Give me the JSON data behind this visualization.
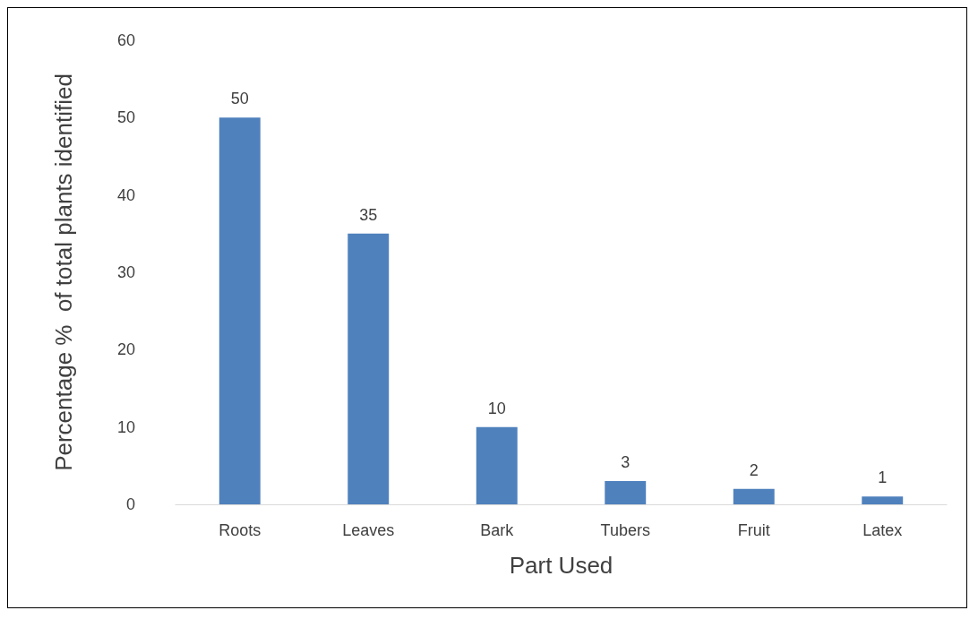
{
  "chart_data": {
    "type": "bar",
    "xlabel": "Part Used",
    "ylabel": "Percentage %  of total plants identified",
    "categories": [
      "Roots",
      "Leaves",
      "Bark",
      "Tubers",
      "Fruit",
      "Latex"
    ],
    "values": [
      50,
      35,
      10,
      3,
      2,
      1
    ],
    "color": "#4f81bd",
    "ylim": [
      0,
      60
    ],
    "yticks": [
      0,
      10,
      20,
      30,
      40,
      50,
      60
    ],
    "grid": false,
    "data_labels": true
  }
}
